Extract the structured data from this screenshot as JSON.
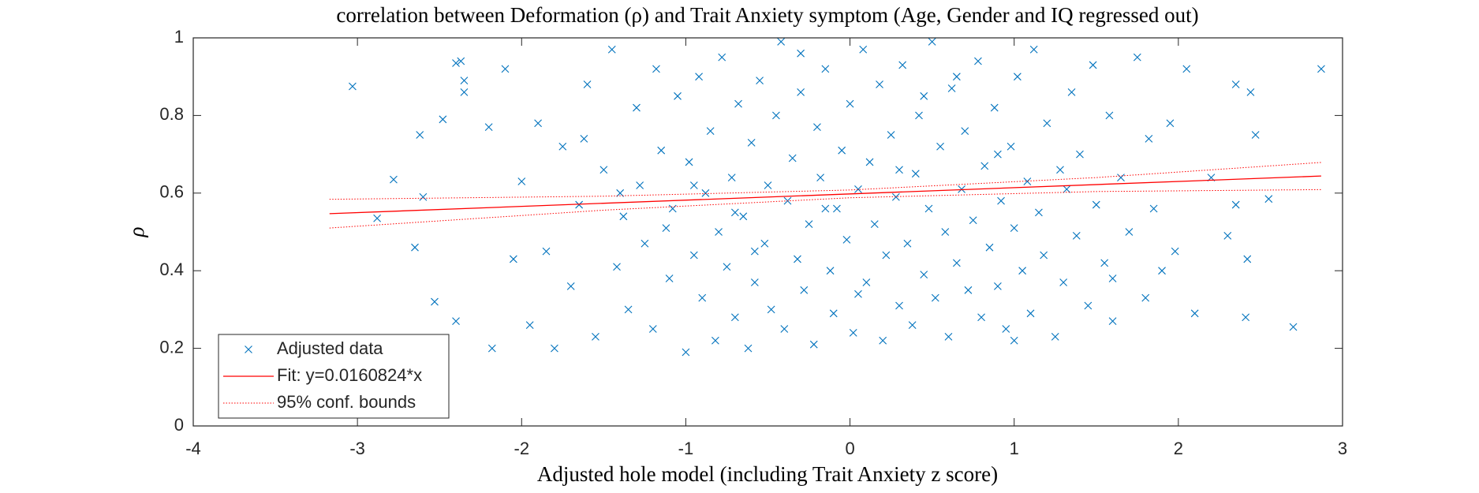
{
  "chart_data": {
    "type": "scatter",
    "title": "correlation between Deformation (ρ) and Trait Anxiety symptom (Age, Gender and IQ regressed out)",
    "xlabel": "Adjusted hole model (including Trait Anxiety z score)",
    "ylabel": "ρ",
    "xlim": [
      -4,
      3
    ],
    "xticks": [
      -4,
      -3,
      -2,
      -1,
      0,
      1,
      2,
      3
    ],
    "ylim": [
      0,
      1
    ],
    "yticks": [
      0,
      0.2,
      0.4,
      0.6,
      0.8,
      1
    ],
    "legend": "bottom-left",
    "series": [
      {
        "name": "Adjusted data",
        "type": "scatter",
        "color": "#0072bd",
        "x": [
          -3.03,
          -2.88,
          -2.78,
          -2.65,
          -2.62,
          -2.6,
          -2.53,
          -2.48,
          -2.4,
          -2.37,
          -2.35,
          -2.35,
          -2.4,
          -2.18,
          -2.2,
          2.87,
          2.7,
          2.55,
          2.42,
          2.41,
          2.44,
          2.47,
          2.35,
          2.35,
          2.2,
          2.3,
          2.1,
          2.05,
          1.98,
          1.95,
          -2.1,
          -2.05,
          -2.0,
          -1.95,
          -1.9,
          -1.85,
          -1.8,
          -1.75,
          -1.7,
          -1.65,
          -1.6,
          -1.55,
          -1.5,
          -1.45,
          -1.42,
          -1.38,
          -1.35,
          -1.3,
          -1.28,
          -1.25,
          -1.2,
          -1.18,
          -1.15,
          -1.1,
          -1.08,
          -1.05,
          -1.0,
          -0.98,
          -0.95,
          -0.92,
          -0.9,
          -0.88,
          -0.85,
          -0.82,
          -0.8,
          -0.78,
          -0.75,
          -0.72,
          -0.7,
          -0.68,
          -0.65,
          -0.62,
          -0.6,
          -0.58,
          -0.55,
          -0.52,
          -0.5,
          -0.48,
          -0.45,
          -0.42,
          -0.4,
          -0.38,
          -0.35,
          -0.32,
          -0.3,
          -0.28,
          -0.25,
          -0.22,
          -0.2,
          -0.18,
          -0.15,
          -0.12,
          -0.1,
          -0.08,
          -0.05,
          -0.02,
          0.0,
          0.02,
          0.05,
          0.08,
          0.1,
          0.12,
          0.15,
          0.18,
          0.2,
          0.22,
          0.25,
          0.28,
          0.3,
          0.32,
          0.35,
          0.38,
          0.4,
          0.42,
          0.45,
          0.48,
          0.5,
          0.52,
          0.55,
          0.58,
          0.6,
          0.62,
          0.65,
          0.68,
          0.7,
          0.72,
          0.75,
          0.78,
          0.8,
          0.82,
          0.85,
          0.88,
          0.9,
          0.92,
          0.95,
          0.98,
          1.0,
          1.02,
          1.05,
          1.08,
          1.1,
          1.12,
          1.15,
          1.18,
          1.2,
          1.25,
          1.28,
          1.3,
          1.35,
          1.38,
          1.4,
          1.45,
          1.48,
          1.5,
          1.55,
          1.58,
          1.6,
          1.65,
          1.7,
          1.75,
          1.8,
          1.82,
          1.85,
          1.9,
          -1.62,
          -1.12,
          -0.58,
          -0.15,
          0.45,
          1.32,
          -0.95,
          -0.3,
          0.05,
          0.65,
          1.0,
          -1.4,
          -0.7,
          0.3,
          0.9,
          1.6
        ],
        "values": [
          0.875,
          0.535,
          0.635,
          0.46,
          0.75,
          0.59,
          0.32,
          0.79,
          0.935,
          0.94,
          0.89,
          0.86,
          0.27,
          0.2,
          0.77,
          0.92,
          0.255,
          0.585,
          0.43,
          0.28,
          0.86,
          0.75,
          0.57,
          0.88,
          0.64,
          0.49,
          0.29,
          0.92,
          0.45,
          0.78,
          0.92,
          0.43,
          0.63,
          0.26,
          0.78,
          0.45,
          0.2,
          0.72,
          0.36,
          0.57,
          0.88,
          0.23,
          0.66,
          0.97,
          0.41,
          0.54,
          0.3,
          0.82,
          0.62,
          0.47,
          0.25,
          0.92,
          0.71,
          0.38,
          0.56,
          0.85,
          0.19,
          0.68,
          0.44,
          0.9,
          0.33,
          0.6,
          0.76,
          0.22,
          0.5,
          0.95,
          0.41,
          0.64,
          0.28,
          0.83,
          0.54,
          0.2,
          0.73,
          0.37,
          0.89,
          0.47,
          0.62,
          0.3,
          0.8,
          0.99,
          0.25,
          0.58,
          0.69,
          0.43,
          0.86,
          0.35,
          0.52,
          0.21,
          0.77,
          0.64,
          0.92,
          0.4,
          0.29,
          0.56,
          0.71,
          0.48,
          0.83,
          0.24,
          0.61,
          0.97,
          0.37,
          0.68,
          0.52,
          0.88,
          0.22,
          0.44,
          0.75,
          0.59,
          0.31,
          0.93,
          0.47,
          0.26,
          0.65,
          0.8,
          0.39,
          0.56,
          0.99,
          0.33,
          0.72,
          0.5,
          0.23,
          0.87,
          0.42,
          0.61,
          0.76,
          0.35,
          0.53,
          0.94,
          0.28,
          0.67,
          0.46,
          0.82,
          0.36,
          0.58,
          0.25,
          0.72,
          0.51,
          0.9,
          0.4,
          0.63,
          0.29,
          0.97,
          0.55,
          0.44,
          0.78,
          0.23,
          0.66,
          0.37,
          0.86,
          0.49,
          0.7,
          0.31,
          0.93,
          0.57,
          0.42,
          0.8,
          0.27,
          0.64,
          0.5,
          0.95,
          0.33,
          0.74,
          0.56,
          0.4,
          0.74,
          0.51,
          0.45,
          0.56,
          0.85,
          0.61,
          0.62,
          0.96,
          0.34,
          0.9,
          0.22,
          0.6,
          0.55,
          0.66,
          0.7,
          0.38
        ]
      },
      {
        "name": "Fit: y=0.0160824*x",
        "type": "line",
        "color": "#ff0000",
        "x": [
          -3.17,
          2.87
        ],
        "values": [
          0.547,
          0.644
        ]
      },
      {
        "name": "95% conf. bounds",
        "type": "band",
        "color": "#ff0000",
        "x": [
          -3.17,
          -1.5,
          0,
          1.5,
          2.87
        ],
        "upper": [
          0.584,
          0.592,
          0.608,
          0.64,
          0.679
        ],
        "lower": [
          0.51,
          0.556,
          0.588,
          0.604,
          0.609
        ]
      }
    ]
  }
}
